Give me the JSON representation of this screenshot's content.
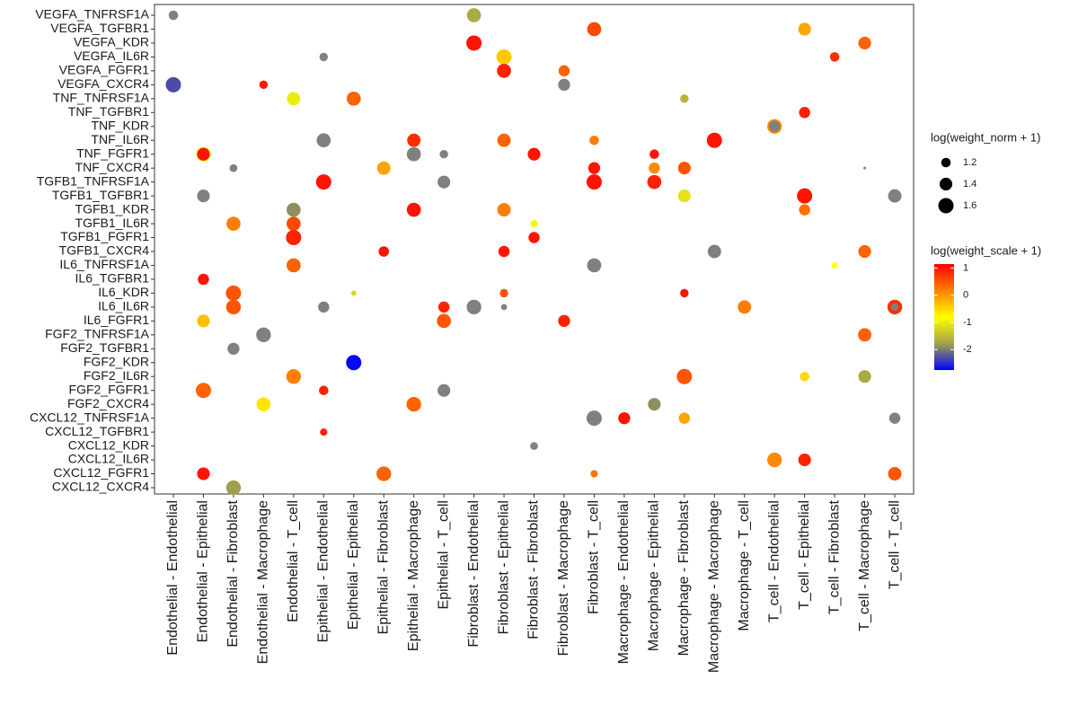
{
  "chart_data": {
    "type": "dotplot",
    "x_categories": [
      "Endothelial - Endothelial",
      "Endothelial - Epithelial",
      "Endothelial - Fibroblast",
      "Endothelial - Macrophage",
      "Endothelial - T_cell",
      "Epithelial - Endothelial",
      "Epithelial - Epithelial",
      "Epithelial - Fibroblast",
      "Epithelial - Macrophage",
      "Epithelial - T_cell",
      "Fibroblast - Endothelial",
      "Fibroblast - Epithelial",
      "Fibroblast - Fibroblast",
      "Fibroblast - Macrophage",
      "Fibroblast - T_cell",
      "Macrophage - Endothelial",
      "Macrophage - Epithelial",
      "Macrophage - Fibroblast",
      "Macrophage - Macrophage",
      "Macrophage - T_cell",
      "T_cell - Endothelial",
      "T_cell - Epithelial",
      "T_cell - Fibroblast",
      "T_cell - Macrophage",
      "T_cell - T_cell"
    ],
    "y_categories": [
      "VEGFA_TNFRSF1A",
      "VEGFA_TGFBR1",
      "VEGFA_KDR",
      "VEGFA_IL6R",
      "VEGFA_FGFR1",
      "VEGFA_CXCR4",
      "TNF_TNFRSF1A",
      "TNF_TGFBR1",
      "TNF_KDR",
      "TNF_IL6R",
      "TNF_FGFR1",
      "TNF_CXCR4",
      "TGFB1_TNFRSF1A",
      "TGFB1_TGFBR1",
      "TGFB1_KDR",
      "TGFB1_IL6R",
      "TGFB1_FGFR1",
      "TGFB1_CXCR4",
      "IL6_TNFRSF1A",
      "IL6_TGFBR1",
      "IL6_KDR",
      "IL6_IL6R",
      "IL6_FGFR1",
      "FGF2_TNFRSF1A",
      "FGF2_TGFBR1",
      "FGF2_KDR",
      "FGF2_IL6R",
      "FGF2_FGFR1",
      "FGF2_CXCR4",
      "CXCL12_TNFRSF1A",
      "CXCL12_TGFBR1",
      "CXCL12_KDR",
      "CXCL12_IL6R",
      "CXCL12_FGFR1",
      "CXCL12_CXCR4"
    ],
    "points": [
      {
        "x": "Endothelial - Endothelial",
        "y": "VEGFA_TNFRSF1A",
        "size": 1.2,
        "color_value": null
      },
      {
        "x": "Fibroblast - Endothelial",
        "y": "VEGFA_TNFRSF1A",
        "size": 1.5,
        "color_value": -1.7
      },
      {
        "x": "Fibroblast - T_cell",
        "y": "VEGFA_TGFBR1",
        "size": 1.5,
        "color_value": 0.6
      },
      {
        "x": "T_cell - Epithelial",
        "y": "VEGFA_TGFBR1",
        "size": 1.4,
        "color_value": -0.1
      },
      {
        "x": "Fibroblast - Endothelial",
        "y": "VEGFA_KDR",
        "size": 1.6,
        "color_value": 1.0
      },
      {
        "x": "T_cell - Macrophage",
        "y": "VEGFA_KDR",
        "size": 1.4,
        "color_value": 0.4
      },
      {
        "x": "Epithelial - Endothelial",
        "y": "VEGFA_IL6R",
        "size": 1.15,
        "color_value": null
      },
      {
        "x": "Fibroblast - Epithelial",
        "y": "VEGFA_IL6R",
        "size": 1.6,
        "color_value": -0.4
      },
      {
        "x": "T_cell - Fibroblast",
        "y": "VEGFA_IL6R",
        "size": 1.2,
        "color_value": 0.8
      },
      {
        "x": "Fibroblast - Epithelial",
        "y": "VEGFA_FGFR1",
        "size": 1.5,
        "color_value": 0.9
      },
      {
        "x": "Fibroblast - Macrophage",
        "y": "VEGFA_FGFR1",
        "size": 1.3,
        "color_value": 0.4
      },
      {
        "x": "Endothelial - Endothelial",
        "y": "VEGFA_CXCR4",
        "size": 1.6,
        "color_value": -2.3
      },
      {
        "x": "Endothelial - Macrophage",
        "y": "VEGFA_CXCR4",
        "size": 1.15,
        "color_value": 1.0
      },
      {
        "x": "Fibroblast - Macrophage",
        "y": "VEGFA_CXCR4",
        "size": 1.35,
        "color_value": null
      },
      {
        "x": "Endothelial - T_cell",
        "y": "TNF_TNFRSF1A",
        "size": 1.45,
        "color_value": -1.0
      },
      {
        "x": "Epithelial - Epithelial",
        "y": "TNF_TNFRSF1A",
        "size": 1.5,
        "color_value": 0.4
      },
      {
        "x": "Macrophage - Fibroblast",
        "y": "TNF_TNFRSF1A",
        "size": 1.15,
        "color_value": -1.6
      },
      {
        "x": "T_cell - Epithelial",
        "y": "TNF_TGFBR1",
        "size": 1.3,
        "color_value": 0.9
      },
      {
        "x": "T_cell - Endothelial",
        "y": "TNF_KDR",
        "size": 1.55,
        "color_value": 0.1
      },
      {
        "x": "T_cell - Endothelial",
        "y": "TNF_KDR",
        "size": 1.3,
        "color_value": null
      },
      {
        "x": "Epithelial - Endothelial",
        "y": "TNF_IL6R",
        "size": 1.5,
        "color_value": null
      },
      {
        "x": "Epithelial - Macrophage",
        "y": "TNF_IL6R",
        "size": 1.45,
        "color_value": 0.8
      },
      {
        "x": "Fibroblast - Epithelial",
        "y": "TNF_IL6R",
        "size": 1.45,
        "color_value": 0.4
      },
      {
        "x": "Fibroblast - T_cell",
        "y": "TNF_IL6R",
        "size": 1.2,
        "color_value": 0.2
      },
      {
        "x": "Macrophage - Macrophage",
        "y": "TNF_IL6R",
        "size": 1.6,
        "color_value": 1.0
      },
      {
        "x": "Endothelial - Epithelial",
        "y": "TNF_FGFR1",
        "size": 1.55,
        "color_value": -0.9
      },
      {
        "x": "Endothelial - Epithelial",
        "y": "TNF_FGFR1",
        "size": 1.4,
        "color_value": 1.0
      },
      {
        "x": "Epithelial - Macrophage",
        "y": "TNF_FGFR1",
        "size": 1.5,
        "color_value": null
      },
      {
        "x": "Epithelial - T_cell",
        "y": "TNF_FGFR1",
        "size": 1.15,
        "color_value": null
      },
      {
        "x": "Fibroblast - Fibroblast",
        "y": "TNF_FGFR1",
        "size": 1.4,
        "color_value": 1.0
      },
      {
        "x": "Macrophage - Epithelial",
        "y": "TNF_FGFR1",
        "size": 1.2,
        "color_value": 1.0
      },
      {
        "x": "Endothelial - Fibroblast",
        "y": "TNF_CXCR4",
        "size": 1.12,
        "color_value": null
      },
      {
        "x": "Epithelial - Fibroblast",
        "y": "TNF_CXCR4",
        "size": 1.45,
        "color_value": -0.1
      },
      {
        "x": "Fibroblast - T_cell",
        "y": "TNF_CXCR4",
        "size": 1.35,
        "color_value": 1.0
      },
      {
        "x": "Macrophage - Epithelial",
        "y": "TNF_CXCR4",
        "size": 1.3,
        "color_value": 0.1
      },
      {
        "x": "Macrophage - Fibroblast",
        "y": "TNF_CXCR4",
        "size": 1.4,
        "color_value": 0.5
      },
      {
        "x": "T_cell - Macrophage",
        "y": "TNF_CXCR4",
        "size": 0.97,
        "color_value": null
      },
      {
        "x": "Epithelial - Endothelial",
        "y": "TGFB1_TNFRSF1A",
        "size": 1.6,
        "color_value": 1.0
      },
      {
        "x": "Epithelial - T_cell",
        "y": "TGFB1_TNFRSF1A",
        "size": 1.4,
        "color_value": null
      },
      {
        "x": "Fibroblast - T_cell",
        "y": "TGFB1_TNFRSF1A",
        "size": 1.6,
        "color_value": 1.0
      },
      {
        "x": "Macrophage - Epithelial",
        "y": "TGFB1_TNFRSF1A",
        "size": 1.5,
        "color_value": 0.9
      },
      {
        "x": "Endothelial - Epithelial",
        "y": "TGFB1_TGFBR1",
        "size": 1.4,
        "color_value": null
      },
      {
        "x": "Macrophage - Fibroblast",
        "y": "TGFB1_TGFBR1",
        "size": 1.4,
        "color_value": -1.1
      },
      {
        "x": "T_cell - Epithelial",
        "y": "TGFB1_TGFBR1",
        "size": 1.6,
        "color_value": 1.0
      },
      {
        "x": "T_cell - T_cell",
        "y": "TGFB1_TGFBR1",
        "size": 1.45,
        "color_value": null
      },
      {
        "x": "Endothelial - T_cell",
        "y": "TGFB1_KDR",
        "size": 1.5,
        "color_value": -1.9
      },
      {
        "x": "Epithelial - Macrophage",
        "y": "TGFB1_KDR",
        "size": 1.5,
        "color_value": 1.0
      },
      {
        "x": "Fibroblast - Epithelial",
        "y": "TGFB1_KDR",
        "size": 1.45,
        "color_value": 0.2
      },
      {
        "x": "T_cell - Epithelial",
        "y": "TGFB1_KDR",
        "size": 1.3,
        "color_value": 0.3
      },
      {
        "x": "Endothelial - Fibroblast",
        "y": "TGFB1_IL6R",
        "size": 1.5,
        "color_value": 0.2
      },
      {
        "x": "Endothelial - T_cell",
        "y": "TGFB1_IL6R",
        "size": 1.5,
        "color_value": 0.6
      },
      {
        "x": "Fibroblast - Fibroblast",
        "y": "TGFB1_IL6R",
        "size": 1.1,
        "color_value": -0.9
      },
      {
        "x": "Endothelial - T_cell",
        "y": "TGFB1_FGFR1",
        "size": 1.6,
        "color_value": 0.9
      },
      {
        "x": "Fibroblast - Fibroblast",
        "y": "TGFB1_FGFR1",
        "size": 1.3,
        "color_value": 1.0
      },
      {
        "x": "Epithelial - Fibroblast",
        "y": "TGFB1_CXCR4",
        "size": 1.25,
        "color_value": 1.0
      },
      {
        "x": "Fibroblast - Epithelial",
        "y": "TGFB1_CXCR4",
        "size": 1.3,
        "color_value": 1.0
      },
      {
        "x": "Macrophage - Macrophage",
        "y": "TGFB1_CXCR4",
        "size": 1.45,
        "color_value": null
      },
      {
        "x": "T_cell - Macrophage",
        "y": "TGFB1_CXCR4",
        "size": 1.4,
        "color_value": 0.4
      },
      {
        "x": "Endothelial - T_cell",
        "y": "IL6_TNFRSF1A",
        "size": 1.5,
        "color_value": 0.4
      },
      {
        "x": "Fibroblast - T_cell",
        "y": "IL6_TNFRSF1A",
        "size": 1.5,
        "color_value": null
      },
      {
        "x": "T_cell - Fibroblast",
        "y": "IL6_TNFRSF1A",
        "size": 1.05,
        "color_value": -0.8
      },
      {
        "x": "Endothelial - Epithelial",
        "y": "IL6_TGFBR1",
        "size": 1.3,
        "color_value": 1.0
      },
      {
        "x": "Endothelial - Fibroblast",
        "y": "IL6_KDR",
        "size": 1.6,
        "color_value": 0.5
      },
      {
        "x": "Epithelial - Epithelial",
        "y": "IL6_KDR",
        "size": 1.02,
        "color_value": -1.2
      },
      {
        "x": "Fibroblast - Epithelial",
        "y": "IL6_KDR",
        "size": 1.15,
        "color_value": 0.5
      },
      {
        "x": "Macrophage - Fibroblast",
        "y": "IL6_KDR",
        "size": 1.15,
        "color_value": 1.0
      },
      {
        "x": "Endothelial - Fibroblast",
        "y": "IL6_IL6R",
        "size": 1.55,
        "color_value": 0.5
      },
      {
        "x": "Epithelial - Endothelial",
        "y": "IL6_IL6R",
        "size": 1.3,
        "color_value": null
      },
      {
        "x": "Epithelial - T_cell",
        "y": "IL6_IL6R",
        "size": 1.3,
        "color_value": 0.9
      },
      {
        "x": "Fibroblast - Endothelial",
        "y": "IL6_IL6R",
        "size": 1.55,
        "color_value": null
      },
      {
        "x": "Fibroblast - Epithelial",
        "y": "IL6_IL6R",
        "size": 1.05,
        "color_value": null
      },
      {
        "x": "Macrophage - T_cell",
        "y": "IL6_IL6R",
        "size": 1.45,
        "color_value": 0.2
      },
      {
        "x": "T_cell - T_cell",
        "y": "IL6_IL6R",
        "size": 1.55,
        "color_value": 0.8
      },
      {
        "x": "T_cell - T_cell",
        "y": "IL6_IL6R",
        "size": 1.1,
        "color_value": null
      },
      {
        "x": "Endothelial - Epithelial",
        "y": "IL6_FGFR1",
        "size": 1.4,
        "color_value": -0.3
      },
      {
        "x": "Epithelial - T_cell",
        "y": "IL6_FGFR1",
        "size": 1.5,
        "color_value": 0.5
      },
      {
        "x": "Fibroblast - Macrophage",
        "y": "IL6_FGFR1",
        "size": 1.35,
        "color_value": 0.9
      },
      {
        "x": "Endothelial - Macrophage",
        "y": "FGF2_TNFRSF1A",
        "size": 1.55,
        "color_value": null
      },
      {
        "x": "T_cell - Macrophage",
        "y": "FGF2_TNFRSF1A",
        "size": 1.45,
        "color_value": 0.4
      },
      {
        "x": "Endothelial - Fibroblast",
        "y": "FGF2_TGFBR1",
        "size": 1.35,
        "color_value": null
      },
      {
        "x": "Epithelial - Epithelial",
        "y": "FGF2_KDR",
        "size": 1.6,
        "color_value": -2.7
      },
      {
        "x": "Endothelial - T_cell",
        "y": "FGF2_IL6R",
        "size": 1.55,
        "color_value": 0.2
      },
      {
        "x": "Macrophage - Fibroblast",
        "y": "FGF2_IL6R",
        "size": 1.6,
        "color_value": 0.5
      },
      {
        "x": "T_cell - Epithelial",
        "y": "FGF2_IL6R",
        "size": 1.2,
        "color_value": -0.5
      },
      {
        "x": "T_cell - Macrophage",
        "y": "FGF2_IL6R",
        "size": 1.4,
        "color_value": -1.7
      },
      {
        "x": "Endothelial - Epithelial",
        "y": "FGF2_FGFR1",
        "size": 1.6,
        "color_value": 0.4
      },
      {
        "x": "Epithelial - Endothelial",
        "y": "FGF2_FGFR1",
        "size": 1.2,
        "color_value": 0.9
      },
      {
        "x": "Epithelial - T_cell",
        "y": "FGF2_FGFR1",
        "size": 1.4,
        "color_value": null
      },
      {
        "x": "Endothelial - Macrophage",
        "y": "FGF2_CXCR4",
        "size": 1.5,
        "color_value": -0.6
      },
      {
        "x": "Epithelial - Macrophage",
        "y": "FGF2_CXCR4",
        "size": 1.55,
        "color_value": 0.4
      },
      {
        "x": "Macrophage - Epithelial",
        "y": "FGF2_CXCR4",
        "size": 1.4,
        "color_value": -1.9
      },
      {
        "x": "Fibroblast - T_cell",
        "y": "CXCL12_TNFRSF1A",
        "size": 1.6,
        "color_value": null
      },
      {
        "x": "Macrophage - Endothelial",
        "y": "CXCL12_TNFRSF1A",
        "size": 1.35,
        "color_value": 1.0
      },
      {
        "x": "Macrophage - Fibroblast",
        "y": "CXCL12_TNFRSF1A",
        "size": 1.3,
        "color_value": -0.1
      },
      {
        "x": "T_cell - T_cell",
        "y": "CXCL12_TNFRSF1A",
        "size": 1.3,
        "color_value": null
      },
      {
        "x": "Epithelial - Endothelial",
        "y": "CXCL12_TGFBR1",
        "size": 1.1,
        "color_value": 0.9
      },
      {
        "x": "Fibroblast - Fibroblast",
        "y": "CXCL12_KDR",
        "size": 1.12,
        "color_value": null
      },
      {
        "x": "T_cell - Endothelial",
        "y": "CXCL12_IL6R",
        "size": 1.55,
        "color_value": 0.1
      },
      {
        "x": "T_cell - Epithelial",
        "y": "CXCL12_IL6R",
        "size": 1.4,
        "color_value": 0.9
      },
      {
        "x": "Endothelial - Epithelial",
        "y": "CXCL12_FGFR1",
        "size": 1.4,
        "color_value": 1.0
      },
      {
        "x": "Epithelial - Fibroblast",
        "y": "CXCL12_FGFR1",
        "size": 1.55,
        "color_value": 0.4
      },
      {
        "x": "Fibroblast - T_cell",
        "y": "CXCL12_FGFR1",
        "size": 1.1,
        "color_value": 0.3
      },
      {
        "x": "T_cell - T_cell",
        "y": "CXCL12_FGFR1",
        "size": 1.45,
        "color_value": 0.5
      },
      {
        "x": "Endothelial - Fibroblast",
        "y": "CXCL12_CXCR4",
        "size": 1.55,
        "color_value": -1.8
      }
    ],
    "size_legend": {
      "title": "log(weight_norm + 1)",
      "ticks": [
        1.2,
        1.4,
        1.6
      ]
    },
    "color_legend": {
      "title": "log(weight_scale + 1)",
      "lim": [
        -2.75,
        1.15
      ],
      "ticks": [
        1,
        0,
        -1,
        -2
      ],
      "colors": [
        "#0000ff",
        "#a3a34a",
        "#ffff00",
        "#ff8000",
        "#ff0000"
      ],
      "na_color": "#808080"
    }
  }
}
